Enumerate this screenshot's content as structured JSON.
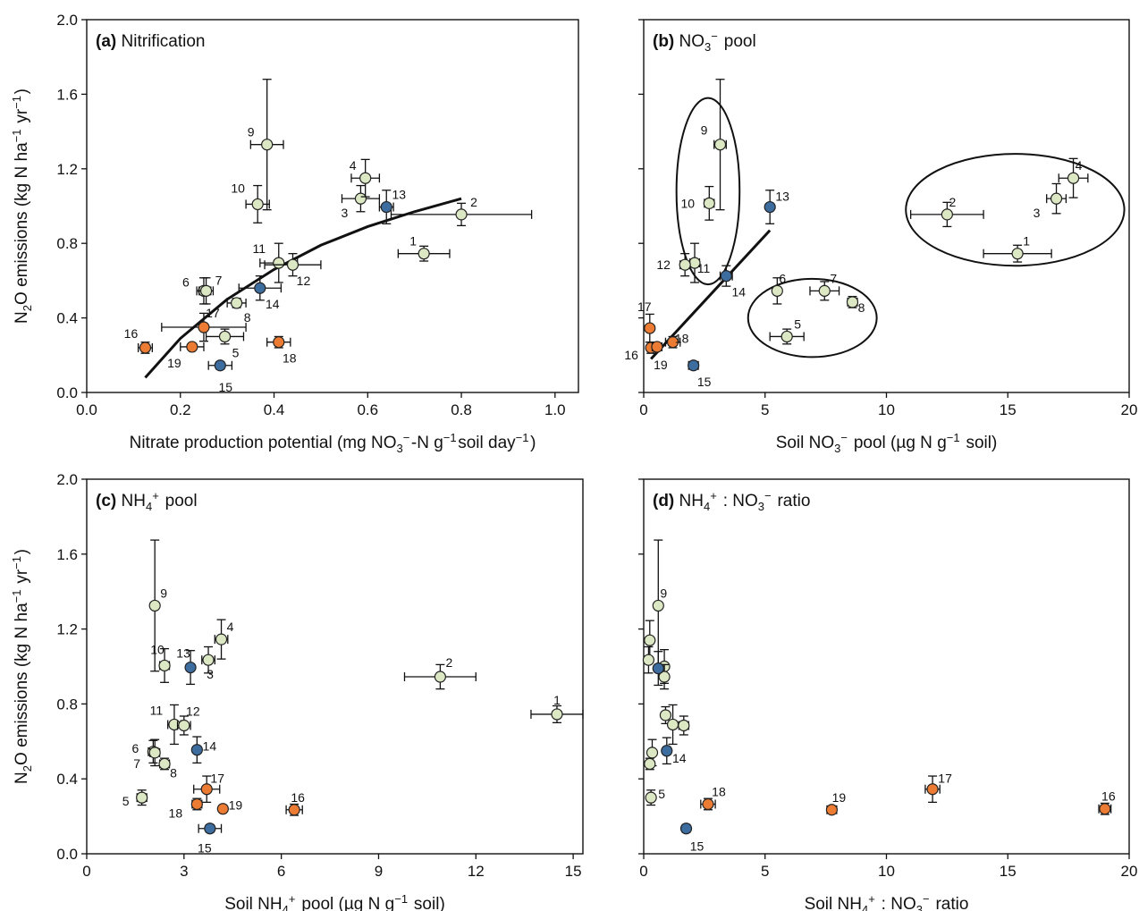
{
  "colors": {
    "light_green": "#dbe8c3",
    "blue": "#3d6c9f",
    "orange": "#ec7b33",
    "line": "#111111"
  },
  "shared_ylabel": "N2O emissions (kg N ha−1 yr−1)",
  "chart_data": [
    {
      "type": "scatter",
      "panel": "a",
      "title_letter": "(a)",
      "title_text": "Nitrification",
      "xlabel": "Nitrate production potential (mg NO3−-N g−1soil day−1)",
      "ylabel": "N2O emissions (kg N ha−1 yr−1)",
      "xlim": [
        0,
        1.05
      ],
      "ylim": [
        0,
        2.0
      ],
      "xticks": [
        0.0,
        0.2,
        0.4,
        0.6,
        0.8,
        1.0
      ],
      "xtick_labels": [
        "0.0",
        "0.2",
        "0.4",
        "0.6",
        "0.8",
        "1.0"
      ],
      "yticks": [
        0.0,
        0.4,
        0.8,
        1.2,
        1.6,
        2.0
      ],
      "ytick_labels": [
        "0.0",
        "0.4",
        "0.8",
        "1.2",
        "1.6",
        "2.0"
      ],
      "show_ytick_labels": true,
      "points": [
        {
          "id": "1",
          "x": 0.72,
          "y": 0.745,
          "xerr": 0.055,
          "yerr": 0.04,
          "color": "light_green"
        },
        {
          "id": "2",
          "x": 0.8,
          "y": 0.955,
          "xerr": 0.15,
          "yerr": 0.06,
          "color": "light_green"
        },
        {
          "id": "3",
          "x": 0.585,
          "y": 1.04,
          "xerr": 0.04,
          "yerr": 0.07,
          "color": "light_green"
        },
        {
          "id": "4",
          "x": 0.595,
          "y": 1.15,
          "xerr": 0.03,
          "yerr": 0.1,
          "color": "light_green"
        },
        {
          "id": "5",
          "x": 0.295,
          "y": 0.3,
          "xerr": 0.04,
          "yerr": 0.04,
          "color": "light_green"
        },
        {
          "id": "6",
          "x": 0.25,
          "y": 0.545,
          "xerr": 0.015,
          "yerr": 0.07,
          "color": "light_green"
        },
        {
          "id": "7",
          "x": 0.255,
          "y": 0.545,
          "xerr": 0.015,
          "yerr": 0.07,
          "color": "light_green"
        },
        {
          "id": "8",
          "x": 0.32,
          "y": 0.48,
          "xerr": 0.02,
          "yerr": 0.025,
          "color": "light_green"
        },
        {
          "id": "9",
          "x": 0.385,
          "y": 1.33,
          "xerr": 0.035,
          "yerr": 0.35,
          "color": "light_green"
        },
        {
          "id": "10",
          "x": 0.365,
          "y": 1.01,
          "xerr": 0.025,
          "yerr": 0.1,
          "color": "light_green"
        },
        {
          "id": "11",
          "x": 0.41,
          "y": 0.695,
          "xerr": 0.04,
          "yerr": 0.105,
          "color": "light_green"
        },
        {
          "id": "12",
          "x": 0.44,
          "y": 0.685,
          "xerr": 0.06,
          "yerr": 0.06,
          "color": "light_green"
        },
        {
          "id": "13",
          "x": 0.64,
          "y": 0.995,
          "xerr": 0.015,
          "yerr": 0.09,
          "color": "blue"
        },
        {
          "id": "14",
          "x": 0.37,
          "y": 0.56,
          "xerr": 0.045,
          "yerr": 0.065,
          "color": "blue"
        },
        {
          "id": "15",
          "x": 0.285,
          "y": 0.145,
          "xerr": 0.025,
          "yerr": 0.02,
          "color": "blue"
        },
        {
          "id": "16",
          "x": 0.125,
          "y": 0.24,
          "xerr": 0.015,
          "yerr": 0.03,
          "color": "orange"
        },
        {
          "id": "17",
          "x": 0.25,
          "y": 0.35,
          "xerr": 0.09,
          "yerr": 0.075,
          "color": "orange"
        },
        {
          "id": "18",
          "x": 0.41,
          "y": 0.27,
          "xerr": 0.025,
          "yerr": 0.03,
          "color": "orange"
        },
        {
          "id": "19",
          "x": 0.225,
          "y": 0.245,
          "xerr": 0.025,
          "yerr": 0.015,
          "color": "orange"
        }
      ],
      "fit_curve": {
        "x": [
          0.125,
          0.2,
          0.3,
          0.4,
          0.5,
          0.6,
          0.7,
          0.8
        ],
        "y": [
          0.08,
          0.29,
          0.5,
          0.66,
          0.79,
          0.89,
          0.97,
          1.04
        ]
      }
    },
    {
      "type": "scatter",
      "panel": "b",
      "title_letter": "(b)",
      "title_text": "NO3− pool",
      "xlabel": "Soil NO3− pool (µg N g−1 soil)",
      "ylabel": "",
      "xlim": [
        0,
        20
      ],
      "ylim": [
        0,
        2.0
      ],
      "xticks": [
        0,
        5,
        10,
        15,
        20
      ],
      "xtick_labels": [
        "0",
        "5",
        "10",
        "15",
        "20"
      ],
      "yticks": [
        0.0,
        0.4,
        0.8,
        1.2,
        1.6,
        2.0
      ],
      "ytick_labels": [],
      "show_ytick_labels": false,
      "points": [
        {
          "id": "1",
          "x": 15.4,
          "y": 0.745,
          "xerr": 1.4,
          "yerr": 0.045,
          "color": "light_green"
        },
        {
          "id": "2",
          "x": 12.5,
          "y": 0.955,
          "xerr": 1.5,
          "yerr": 0.065,
          "color": "light_green"
        },
        {
          "id": "3",
          "x": 17.0,
          "y": 1.04,
          "xerr": 0.4,
          "yerr": 0.08,
          "color": "light_green"
        },
        {
          "id": "4",
          "x": 17.7,
          "y": 1.15,
          "xerr": 0.6,
          "yerr": 0.105,
          "color": "light_green"
        },
        {
          "id": "5",
          "x": 5.9,
          "y": 0.3,
          "xerr": 0.7,
          "yerr": 0.04,
          "color": "light_green"
        },
        {
          "id": "6",
          "x": 5.5,
          "y": 0.545,
          "xerr": 0.15,
          "yerr": 0.07,
          "color": "light_green"
        },
        {
          "id": "7",
          "x": 7.45,
          "y": 0.545,
          "xerr": 0.6,
          "yerr": 0.05,
          "color": "light_green"
        },
        {
          "id": "8",
          "x": 8.6,
          "y": 0.485,
          "xerr": 0.2,
          "yerr": 0.03,
          "color": "light_green"
        },
        {
          "id": "9",
          "x": 3.15,
          "y": 1.33,
          "xerr": 0.25,
          "yerr": 0.35,
          "color": "light_green"
        },
        {
          "id": "10",
          "x": 2.7,
          "y": 1.015,
          "xerr": 0.2,
          "yerr": 0.09,
          "color": "light_green"
        },
        {
          "id": "11",
          "x": 2.1,
          "y": 0.695,
          "xerr": 0.2,
          "yerr": 0.105,
          "color": "light_green"
        },
        {
          "id": "12",
          "x": 1.7,
          "y": 0.685,
          "xerr": 0.2,
          "yerr": 0.06,
          "color": "light_green"
        },
        {
          "id": "13",
          "x": 5.2,
          "y": 0.995,
          "xerr": 0.1,
          "yerr": 0.09,
          "color": "blue"
        },
        {
          "id": "14",
          "x": 3.4,
          "y": 0.625,
          "xerr": 0.25,
          "yerr": 0.055,
          "color": "blue"
        },
        {
          "id": "15",
          "x": 2.05,
          "y": 0.145,
          "xerr": 0.2,
          "yerr": 0.02,
          "color": "blue"
        },
        {
          "id": "16",
          "x": 0.3,
          "y": 0.24,
          "xerr": 0.1,
          "yerr": 0.03,
          "color": "orange"
        },
        {
          "id": "17",
          "x": 0.25,
          "y": 0.345,
          "xerr": 0.05,
          "yerr": 0.075,
          "color": "orange"
        },
        {
          "id": "18",
          "x": 1.2,
          "y": 0.27,
          "xerr": 0.3,
          "yerr": 0.03,
          "color": "orange"
        },
        {
          "id": "19",
          "x": 0.55,
          "y": 0.245,
          "xerr": 0.2,
          "yerr": 0.015,
          "color": "orange"
        }
      ],
      "fit_line": {
        "x": [
          0.3,
          5.2
        ],
        "y": [
          0.18,
          0.87
        ]
      },
      "ellipses": [
        {
          "cx": 2.65,
          "cy": 1.08,
          "rx": 1.3,
          "ry": 0.5
        },
        {
          "cx": 6.95,
          "cy": 0.4,
          "rx": 2.65,
          "ry": 0.21
        },
        {
          "cx": 15.3,
          "cy": 0.98,
          "rx": 4.5,
          "ry": 0.3
        }
      ]
    },
    {
      "type": "scatter",
      "panel": "c",
      "title_letter": "(c)",
      "title_text": "NH4+ pool",
      "xlabel": "Soil NH4+ pool (µg N g−1 soil)",
      "ylabel": "N2O emissions (kg N ha−1 yr−1)",
      "xlim": [
        0,
        15.3
      ],
      "ylim": [
        0,
        2.0
      ],
      "xticks": [
        0,
        3,
        6,
        9,
        12,
        15
      ],
      "xtick_labels": [
        "0",
        "3",
        "6",
        "9",
        "12",
        "15"
      ],
      "yticks": [
        0.0,
        0.4,
        0.8,
        1.2,
        1.6,
        2.0
      ],
      "ytick_labels": [
        "0.0",
        "0.4",
        "0.8",
        "1.2",
        "1.6",
        "2.0"
      ],
      "show_ytick_labels": true,
      "points": [
        {
          "id": "1",
          "x": 14.5,
          "y": 0.745,
          "xerr": 0.8,
          "yerr": 0.045,
          "color": "light_green"
        },
        {
          "id": "2",
          "x": 10.9,
          "y": 0.945,
          "xerr": 1.1,
          "yerr": 0.065,
          "color": "light_green"
        },
        {
          "id": "3",
          "x": 3.75,
          "y": 1.035,
          "xerr": 0.2,
          "yerr": 0.07,
          "color": "light_green"
        },
        {
          "id": "4",
          "x": 4.15,
          "y": 1.145,
          "xerr": 0.2,
          "yerr": 0.105,
          "color": "light_green"
        },
        {
          "id": "5",
          "x": 1.7,
          "y": 0.3,
          "xerr": 0.15,
          "yerr": 0.04,
          "color": "light_green"
        },
        {
          "id": "6",
          "x": 2.05,
          "y": 0.545,
          "xerr": 0.15,
          "yerr": 0.06,
          "color": "light_green"
        },
        {
          "id": "7",
          "x": 2.1,
          "y": 0.54,
          "xerr": 0.15,
          "yerr": 0.07,
          "color": "light_green"
        },
        {
          "id": "8",
          "x": 2.4,
          "y": 0.48,
          "xerr": 0.15,
          "yerr": 0.03,
          "color": "light_green"
        },
        {
          "id": "9",
          "x": 2.1,
          "y": 1.325,
          "xerr": 0.1,
          "yerr": 0.35,
          "color": "light_green"
        },
        {
          "id": "10",
          "x": 2.4,
          "y": 1.005,
          "xerr": 0.15,
          "yerr": 0.09,
          "color": "light_green"
        },
        {
          "id": "11",
          "x": 2.7,
          "y": 0.69,
          "xerr": 0.2,
          "yerr": 0.105,
          "color": "light_green"
        },
        {
          "id": "12",
          "x": 3.0,
          "y": 0.685,
          "xerr": 0.2,
          "yerr": 0.05,
          "color": "light_green"
        },
        {
          "id": "13",
          "x": 3.2,
          "y": 0.995,
          "xerr": 0.1,
          "yerr": 0.09,
          "color": "blue"
        },
        {
          "id": "14",
          "x": 3.4,
          "y": 0.555,
          "xerr": 0.1,
          "yerr": 0.07,
          "color": "blue"
        },
        {
          "id": "15",
          "x": 3.8,
          "y": 0.135,
          "xerr": 0.35,
          "yerr": 0.02,
          "color": "blue"
        },
        {
          "id": "16",
          "x": 6.4,
          "y": 0.235,
          "xerr": 0.25,
          "yerr": 0.03,
          "color": "orange"
        },
        {
          "id": "17",
          "x": 3.7,
          "y": 0.345,
          "xerr": 0.4,
          "yerr": 0.07,
          "color": "orange"
        },
        {
          "id": "18",
          "x": 3.4,
          "y": 0.265,
          "xerr": 0.15,
          "yerr": 0.03,
          "color": "orange"
        },
        {
          "id": "19",
          "x": 4.2,
          "y": 0.24,
          "xerr": 0.1,
          "yerr": 0.015,
          "color": "orange"
        }
      ]
    },
    {
      "type": "scatter",
      "panel": "d",
      "title_letter": "(d)",
      "title_text": "NH4+ : NO3− ratio",
      "xlabel": "Soil NH4+ : NO3− ratio",
      "ylabel": "",
      "xlim": [
        0,
        20
      ],
      "ylim": [
        0,
        2.0
      ],
      "xticks": [
        0,
        5,
        10,
        15,
        20
      ],
      "xtick_labels": [
        "0",
        "5",
        "10",
        "15",
        "20"
      ],
      "yticks": [
        0.0,
        0.4,
        0.8,
        1.2,
        1.6,
        2.0
      ],
      "ytick_labels": [],
      "show_ytick_labels": false,
      "points": [
        {
          "id": "",
          "x": 0.25,
          "y": 1.14,
          "xerr": 0.05,
          "yerr": 0.105,
          "color": "light_green"
        },
        {
          "id": "",
          "x": 0.2,
          "y": 1.035,
          "xerr": 0.05,
          "yerr": 0.07,
          "color": "light_green"
        },
        {
          "id": "9",
          "x": 0.6,
          "y": 1.325,
          "xerr": 0.05,
          "yerr": 0.35,
          "color": "light_green"
        },
        {
          "id": "",
          "x": 0.85,
          "y": 1.0,
          "xerr": 0.05,
          "yerr": 0.09,
          "color": "light_green"
        },
        {
          "id": "",
          "x": 0.85,
          "y": 0.945,
          "xerr": 0.05,
          "yerr": 0.065,
          "color": "light_green"
        },
        {
          "id": "",
          "x": 0.9,
          "y": 0.74,
          "xerr": 0.1,
          "yerr": 0.045,
          "color": "light_green"
        },
        {
          "id": "",
          "x": 1.2,
          "y": 0.69,
          "xerr": 0.15,
          "yerr": 0.105,
          "color": "light_green"
        },
        {
          "id": "",
          "x": 1.65,
          "y": 0.685,
          "xerr": 0.2,
          "yerr": 0.05,
          "color": "light_green"
        },
        {
          "id": "",
          "x": 0.35,
          "y": 0.54,
          "xerr": 0.05,
          "yerr": 0.07,
          "color": "light_green"
        },
        {
          "id": "",
          "x": 0.25,
          "y": 0.48,
          "xerr": 0.05,
          "yerr": 0.03,
          "color": "light_green"
        },
        {
          "id": "5",
          "x": 0.3,
          "y": 0.3,
          "xerr": 0.05,
          "yerr": 0.04,
          "color": "light_green"
        },
        {
          "id": "",
          "x": 0.6,
          "y": 0.99,
          "xerr": 0.15,
          "yerr": 0.09,
          "color": "blue"
        },
        {
          "id": "14",
          "x": 0.95,
          "y": 0.55,
          "xerr": 0.15,
          "yerr": 0.07,
          "color": "blue"
        },
        {
          "id": "15",
          "x": 1.75,
          "y": 0.135,
          "xerr": 0.15,
          "yerr": 0.02,
          "color": "blue"
        },
        {
          "id": "16",
          "x": 19.0,
          "y": 0.24,
          "xerr": 0.25,
          "yerr": 0.03,
          "color": "orange"
        },
        {
          "id": "17",
          "x": 11.9,
          "y": 0.345,
          "xerr": 0.3,
          "yerr": 0.07,
          "color": "orange"
        },
        {
          "id": "18",
          "x": 2.65,
          "y": 0.265,
          "xerr": 0.3,
          "yerr": 0.03,
          "color": "orange"
        },
        {
          "id": "19",
          "x": 7.75,
          "y": 0.235,
          "xerr": 0.2,
          "yerr": 0.015,
          "color": "orange"
        }
      ]
    }
  ]
}
